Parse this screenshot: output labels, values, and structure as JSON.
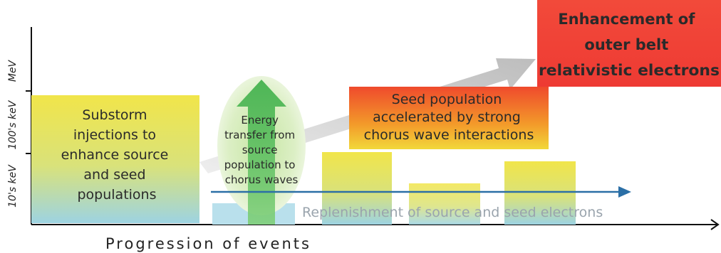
{
  "y_axis": {
    "labels": [
      "MeV",
      "100's keV",
      "10's keV"
    ]
  },
  "x_axis": {
    "label": "Progression of events"
  },
  "boxes": {
    "substorm": {
      "lines": [
        "Substorm",
        "injections to",
        "enhance source",
        "and seed",
        "populations"
      ],
      "gradient": [
        "#f0e64a",
        "#9ed3df"
      ]
    },
    "energy_transfer": {
      "lines": [
        "Energy",
        "transfer from",
        "source",
        "population to",
        "chorus waves"
      ],
      "color": "#4bbf57"
    },
    "seed_accelerated": {
      "lines": [
        "Seed population",
        "accelerated by strong",
        "chorus wave interactions"
      ],
      "gradient": [
        "#f04a2e",
        "#f2d230"
      ]
    },
    "enhancement": {
      "lines": [
        "Enhancement of",
        "outer belt",
        "relativistic electrons"
      ],
      "color": "#ef4038"
    }
  },
  "replenishment": {
    "label": "Replenishment of source and seed electrons",
    "arrow_color": "#2b6fa6"
  }
}
